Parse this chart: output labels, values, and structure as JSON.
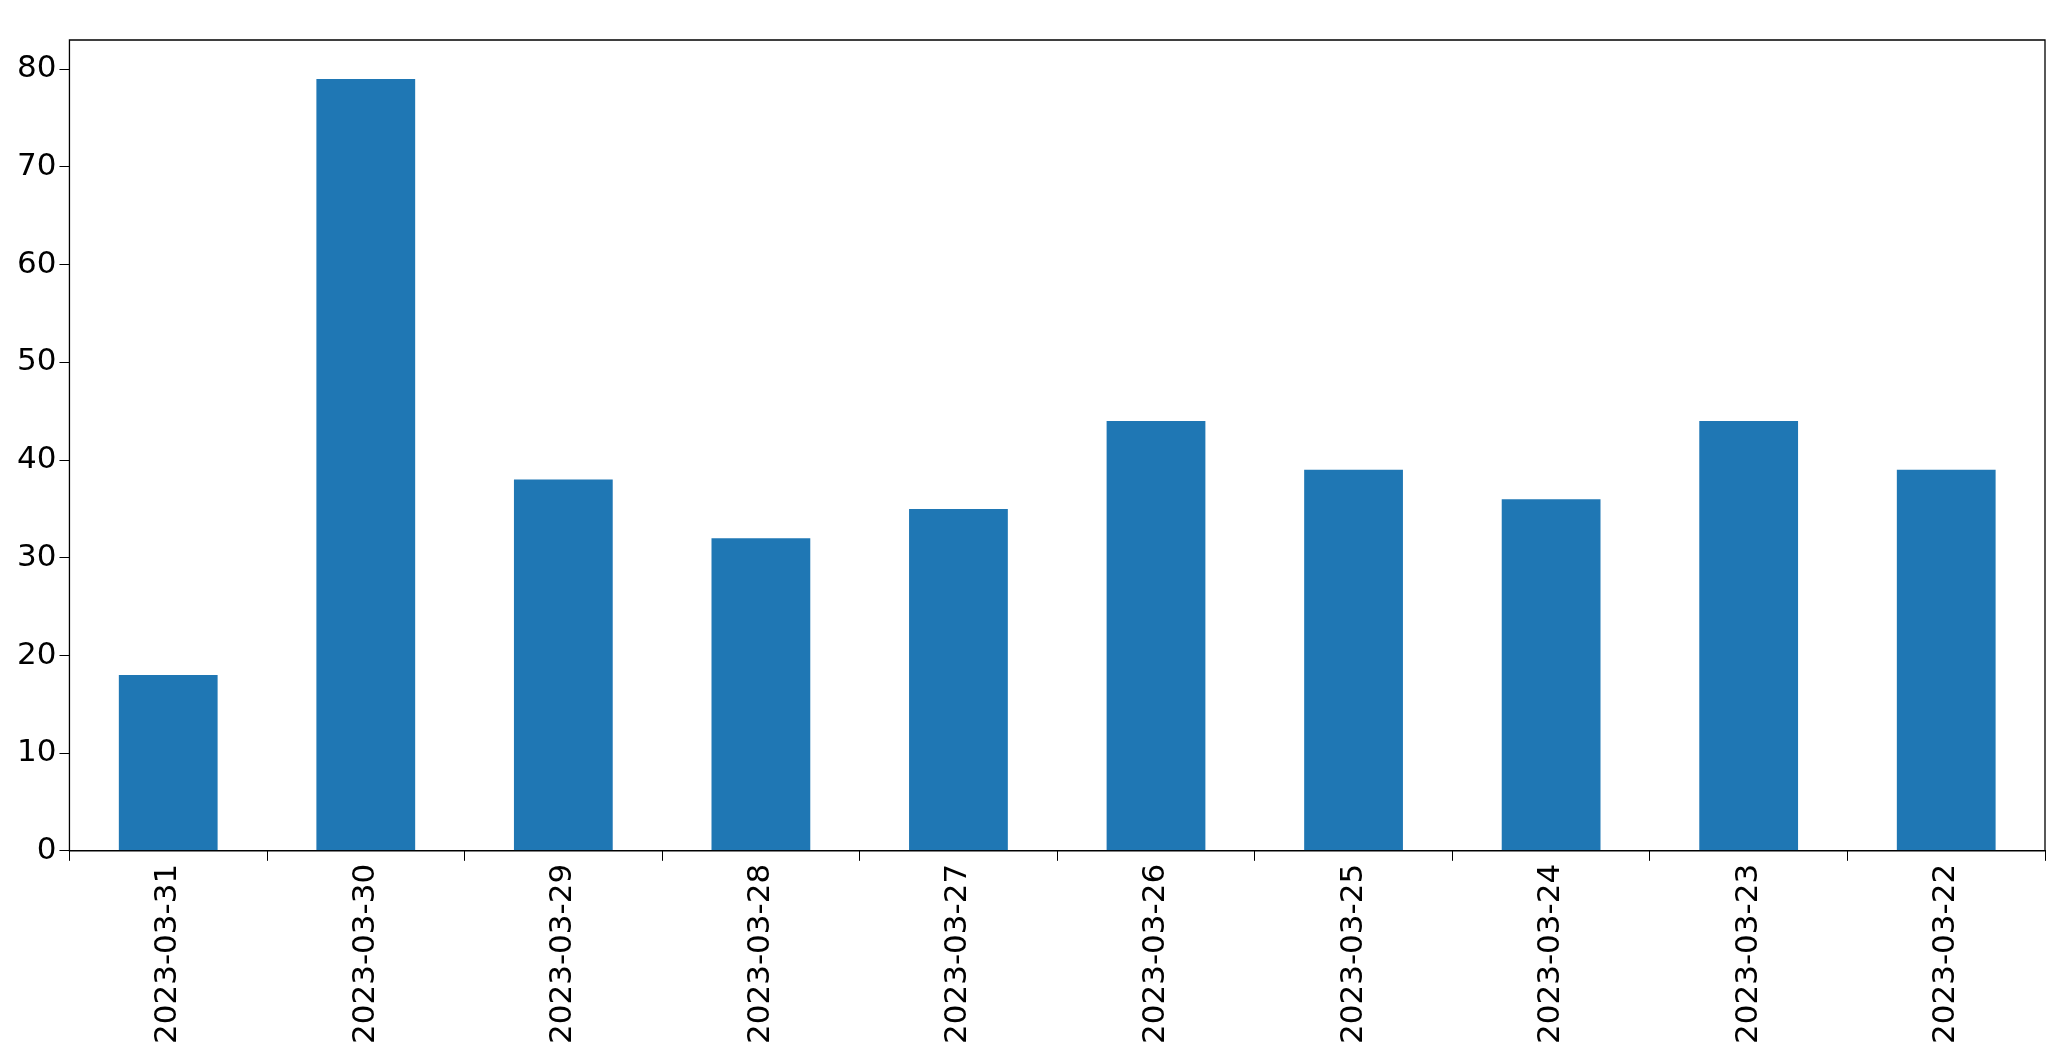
{
  "chart_data": {
    "type": "bar",
    "categories": [
      "2023-03-31",
      "2023-03-30",
      "2023-03-29",
      "2023-03-28",
      "2023-03-27",
      "2023-03-26",
      "2023-03-25",
      "2023-03-24",
      "2023-03-23",
      "2023-03-22"
    ],
    "values": [
      18,
      79,
      38,
      32,
      35,
      44,
      39,
      36,
      44,
      39
    ],
    "color": "#1f77b4",
    "ylim": [
      0,
      83
    ],
    "yticks": [
      0,
      10,
      20,
      30,
      40,
      50,
      60,
      70,
      80
    ],
    "grid": false,
    "legend": false
  }
}
